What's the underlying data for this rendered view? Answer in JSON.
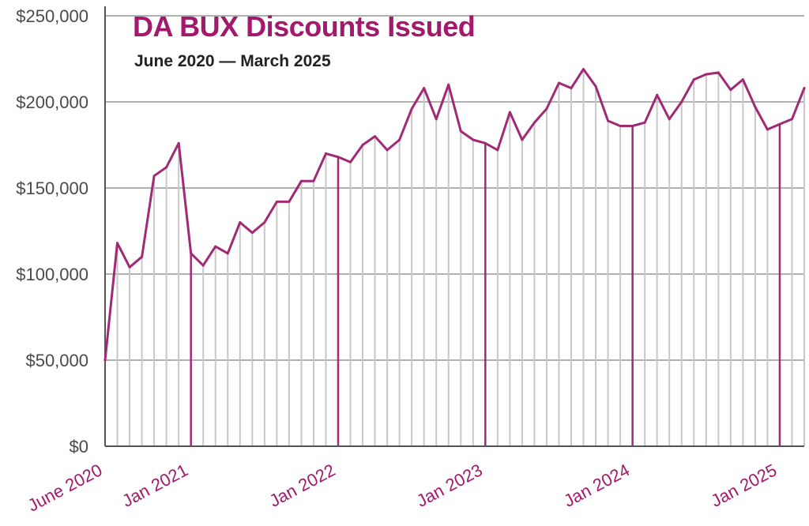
{
  "colors": {
    "accent": "#a3196b",
    "line": "#a12a75",
    "grid_vertical": "#c8c8c8",
    "grid_horizontal": "#b0b0b0",
    "axis": "#555555",
    "text": "#222222"
  },
  "chart_data": {
    "type": "line",
    "title": "DA BUX Discounts Issued",
    "subtitle": "June 2020 — March 2025",
    "xlabel": "",
    "ylabel": "",
    "ylim": [
      0,
      250000
    ],
    "yticks": [
      0,
      50000,
      100000,
      150000,
      200000,
      250000
    ],
    "ytick_labels": [
      "$0",
      "$50,000",
      "$100,000",
      "$150,000",
      "$200,000",
      "$250,000"
    ],
    "x_start": "2020-06",
    "x_end": "2025-03",
    "xtick_labels": [
      {
        "month": "2020-06",
        "label": "June 2020"
      },
      {
        "month": "2021-01",
        "label": "Jan 2021"
      },
      {
        "month": "2022-01",
        "label": "Jan 2022"
      },
      {
        "month": "2023-01",
        "label": "Jan 2023"
      },
      {
        "month": "2024-01",
        "label": "Jan 2024"
      },
      {
        "month": "2025-01",
        "label": "Jan 2025"
      }
    ],
    "grid": "vertical line per month; horizontal lines at y ticks; January lines highlighted",
    "series": [
      {
        "x": [
          "2020-06",
          "2020-07",
          "2020-08",
          "2020-09",
          "2020-10",
          "2020-11",
          "2020-12",
          "2021-01",
          "2021-02",
          "2021-03",
          "2021-04",
          "2021-05",
          "2021-06",
          "2021-07",
          "2021-08",
          "2021-09",
          "2021-10",
          "2021-11",
          "2021-12",
          "2022-01",
          "2022-02",
          "2022-03",
          "2022-04",
          "2022-05",
          "2022-06",
          "2022-07",
          "2022-08",
          "2022-09",
          "2022-10",
          "2022-11",
          "2022-12",
          "2023-01",
          "2023-02",
          "2023-03",
          "2023-04",
          "2023-05",
          "2023-06",
          "2023-07",
          "2023-08",
          "2023-09",
          "2023-10",
          "2023-11",
          "2023-12",
          "2024-01",
          "2024-02",
          "2024-03",
          "2024-04",
          "2024-05",
          "2024-06",
          "2024-07",
          "2024-08",
          "2024-09",
          "2024-10",
          "2024-11",
          "2024-12",
          "2025-01",
          "2025-02",
          "2025-03"
        ],
        "values": [
          50000,
          118000,
          104000,
          110000,
          157000,
          162000,
          176000,
          112000,
          105000,
          116000,
          112000,
          130000,
          124000,
          130000,
          142000,
          142000,
          154000,
          154000,
          170000,
          168000,
          165000,
          175000,
          180000,
          172000,
          178000,
          196000,
          208000,
          190000,
          210000,
          183000,
          178000,
          176000,
          172000,
          194000,
          178000,
          188000,
          196000,
          211000,
          208000,
          219000,
          209000,
          189000,
          186000,
          186000,
          188000,
          204000,
          190000,
          200000,
          213000,
          216000,
          217000,
          207000,
          213000,
          197000,
          184000,
          187000,
          190000,
          208000
        ]
      }
    ]
  }
}
